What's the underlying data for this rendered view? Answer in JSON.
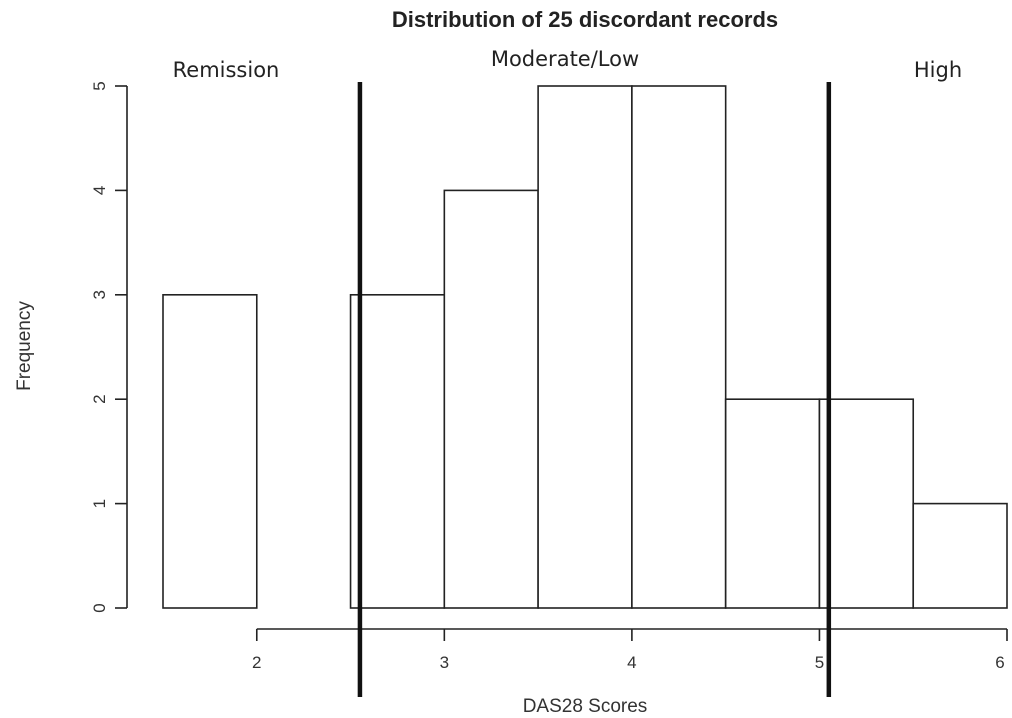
{
  "chart_data": {
    "type": "bar",
    "subtype": "histogram",
    "title": "Distribution of 25 discordant records",
    "xlabel": "DAS28 Scores",
    "ylabel": "Frequency",
    "bins": [
      {
        "start": 1.5,
        "end": 2.0,
        "count": 3
      },
      {
        "start": 2.0,
        "end": 2.5,
        "count": 0
      },
      {
        "start": 2.5,
        "end": 3.0,
        "count": 3
      },
      {
        "start": 3.0,
        "end": 3.5,
        "count": 4
      },
      {
        "start": 3.5,
        "end": 4.0,
        "count": 5
      },
      {
        "start": 4.0,
        "end": 4.5,
        "count": 5
      },
      {
        "start": 4.5,
        "end": 5.0,
        "count": 2
      },
      {
        "start": 5.0,
        "end": 5.5,
        "count": 2
      },
      {
        "start": 5.5,
        "end": 6.0,
        "count": 1
      }
    ],
    "xlim": [
      1.5,
      6.0
    ],
    "ylim": [
      0,
      5
    ],
    "x_ticks": [
      2,
      3,
      4,
      5,
      6
    ],
    "y_ticks": [
      0,
      1,
      2,
      3,
      4,
      5
    ],
    "cutoffs": [
      2.55,
      5.05
    ],
    "region_labels": [
      "Remission",
      "Moderate/Low",
      "High"
    ],
    "grid": false,
    "bar_fill": "#ffffff",
    "bar_stroke": "#222222"
  }
}
